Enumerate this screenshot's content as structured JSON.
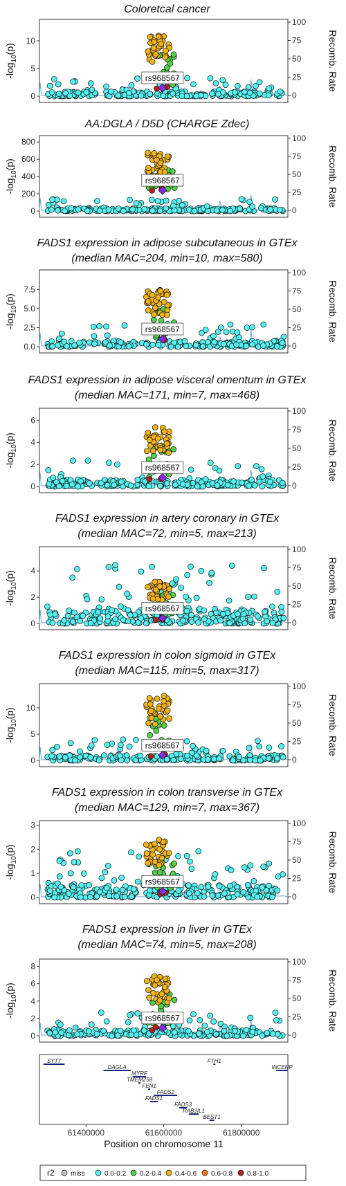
{
  "lead_snp": "rs968567",
  "y_axis_label_left": "-log10(p)",
  "y_axis_label_right": "Recomb. Rate",
  "recomb_ticks": [
    0,
    25,
    50,
    75,
    100
  ],
  "x_axis": {
    "label": "Position on chromosome 11",
    "ticks": [
      61400000,
      61600000,
      61800000
    ],
    "tick_labels": [
      "61400000",
      "61600000",
      "61800000"
    ],
    "range": [
      61280000,
      61920000
    ]
  },
  "legend": {
    "title": "r2",
    "items": [
      {
        "label": "miss",
        "color": "#bfbfbf"
      },
      {
        "label": "0.0-0.2",
        "color": "#53f3f3"
      },
      {
        "label": "0.2-0.4",
        "color": "#4fd443"
      },
      {
        "label": "0.4-0.6",
        "color": "#f4b40f"
      },
      {
        "label": "0.6-0.8",
        "color": "#f07c1c"
      },
      {
        "label": "0.8-1.0",
        "color": "#b8201b"
      }
    ]
  },
  "chart_data": [
    {
      "type": "scatter",
      "title": [
        "Coloretcal cancer"
      ],
      "ylim": [
        0,
        13.5
      ],
      "yticks": [
        0,
        5,
        10
      ],
      "ytick_labels": [
        "0",
        "5",
        "10"
      ],
      "top_max": 11,
      "bg_max": 3.5,
      "bg_density": 1.0,
      "lead_value": 1.5
    },
    {
      "type": "scatter",
      "title": [
        "AA:DGLA / D5D (CHARGE Zdec)"
      ],
      "ylim": [
        0,
        850
      ],
      "yticks": [
        0,
        200,
        400,
        600,
        800
      ],
      "ytick_labels": [
        "0",
        "200",
        "400",
        "600",
        "800"
      ],
      "top_max": 690,
      "bg_max": 140,
      "bg_density": 0.9,
      "lead_value": 240
    },
    {
      "type": "scatter",
      "title": [
        "FADS1 expression in adipose subcutaneous in GTEx",
        "(median MAC=204, min=10, max=580)"
      ],
      "ylim": [
        0,
        9.8
      ],
      "yticks": [
        0,
        2.5,
        5.0,
        7.5
      ],
      "ytick_labels": [
        "0.0",
        "2.5",
        "5.0",
        "7.5"
      ],
      "top_max": 7.5,
      "bg_max": 3.0,
      "bg_density": 1.0,
      "lead_value": 1.0
    },
    {
      "type": "scatter",
      "title": [
        "FADS1 expression in adipose visceral omentum in GTEx",
        "(median MAC=171, min=7, max=468)"
      ],
      "ylim": [
        0,
        6.9
      ],
      "yticks": [
        0,
        2,
        4,
        6
      ],
      "ytick_labels": [
        "0",
        "2",
        "4",
        "6"
      ],
      "top_max": 5.5,
      "bg_max": 2.5,
      "bg_density": 1.0,
      "lead_value": 0.8
    },
    {
      "type": "scatter",
      "title": [
        "FADS1 expression in artery coronary in GTEx",
        "(median MAC=72, min=5, max=213)"
      ],
      "ylim": [
        0,
        5.7
      ],
      "yticks": [
        0,
        2,
        4
      ],
      "ytick_labels": [
        "0",
        "2",
        "4"
      ],
      "top_max": 3.2,
      "bg_max": 4.5,
      "bg_density": 1.3,
      "lead_value": 0.4
    },
    {
      "type": "scatter",
      "title": [
        "FADS1 expression in colon sigmoid in GTEx",
        "(median MAC=115, min=5, max=317)"
      ],
      "ylim": [
        0,
        14.2
      ],
      "yticks": [
        0,
        5,
        10
      ],
      "ytick_labels": [
        "0",
        "5",
        "10"
      ],
      "top_max": 12.5,
      "bg_max": 4.0,
      "bg_density": 1.0,
      "lead_value": 1.0
    },
    {
      "type": "scatter",
      "title": [
        "FADS1 expression in colon transverse in GTEx",
        "(median MAC=129, min=7, max=367)"
      ],
      "ylim": [
        0,
        3.1
      ],
      "yticks": [
        0,
        1,
        2,
        3
      ],
      "ytick_labels": [
        "0",
        "1",
        "2",
        "3"
      ],
      "top_max": 2.4,
      "bg_max": 2.1,
      "bg_density": 1.3,
      "lead_value": 0.25
    },
    {
      "type": "scatter",
      "title": [
        "FADS1 expression in liver in GTEx",
        "(median MAC=74, min=5, max=208)"
      ],
      "ylim": [
        0,
        8.6
      ],
      "yticks": [
        0,
        2,
        4,
        6,
        8
      ],
      "ytick_labels": [
        "0",
        "2",
        "4",
        "6",
        "8"
      ],
      "top_max": 7.0,
      "bg_max": 2.8,
      "bg_density": 1.0,
      "lead_value": 0.9
    }
  ],
  "genes": [
    {
      "name": "SYT7",
      "start": 61290000,
      "end": 61345000,
      "row": 0
    },
    {
      "name": "DAGLA",
      "start": 61445000,
      "end": 61515000,
      "row": 1
    },
    {
      "name": "FTH1",
      "start": 61728000,
      "end": 61732000,
      "row": 0
    },
    {
      "name": "INCENP",
      "start": 61890000,
      "end": 61920000,
      "row": 1
    },
    {
      "name": "MYRF",
      "start": 61520000,
      "end": 61555000,
      "row": 2
    },
    {
      "name": "TMEM258",
      "start": 61535000,
      "end": 61540000,
      "row": 3
    },
    {
      "name": "FEN1",
      "start": 61560000,
      "end": 61565000,
      "row": 4
    },
    {
      "name": "FADS2",
      "start": 61575000,
      "end": 61635000,
      "row": 5
    },
    {
      "name": "FADS1",
      "start": 61565000,
      "end": 61585000,
      "row": 6
    },
    {
      "name": "FADS3",
      "start": 61640000,
      "end": 61660000,
      "row": 7
    },
    {
      "name": "RAB3IL1",
      "start": 61665000,
      "end": 61690000,
      "row": 8
    },
    {
      "name": "BEST1",
      "start": 61718000,
      "end": 61730000,
      "row": 9
    }
  ]
}
